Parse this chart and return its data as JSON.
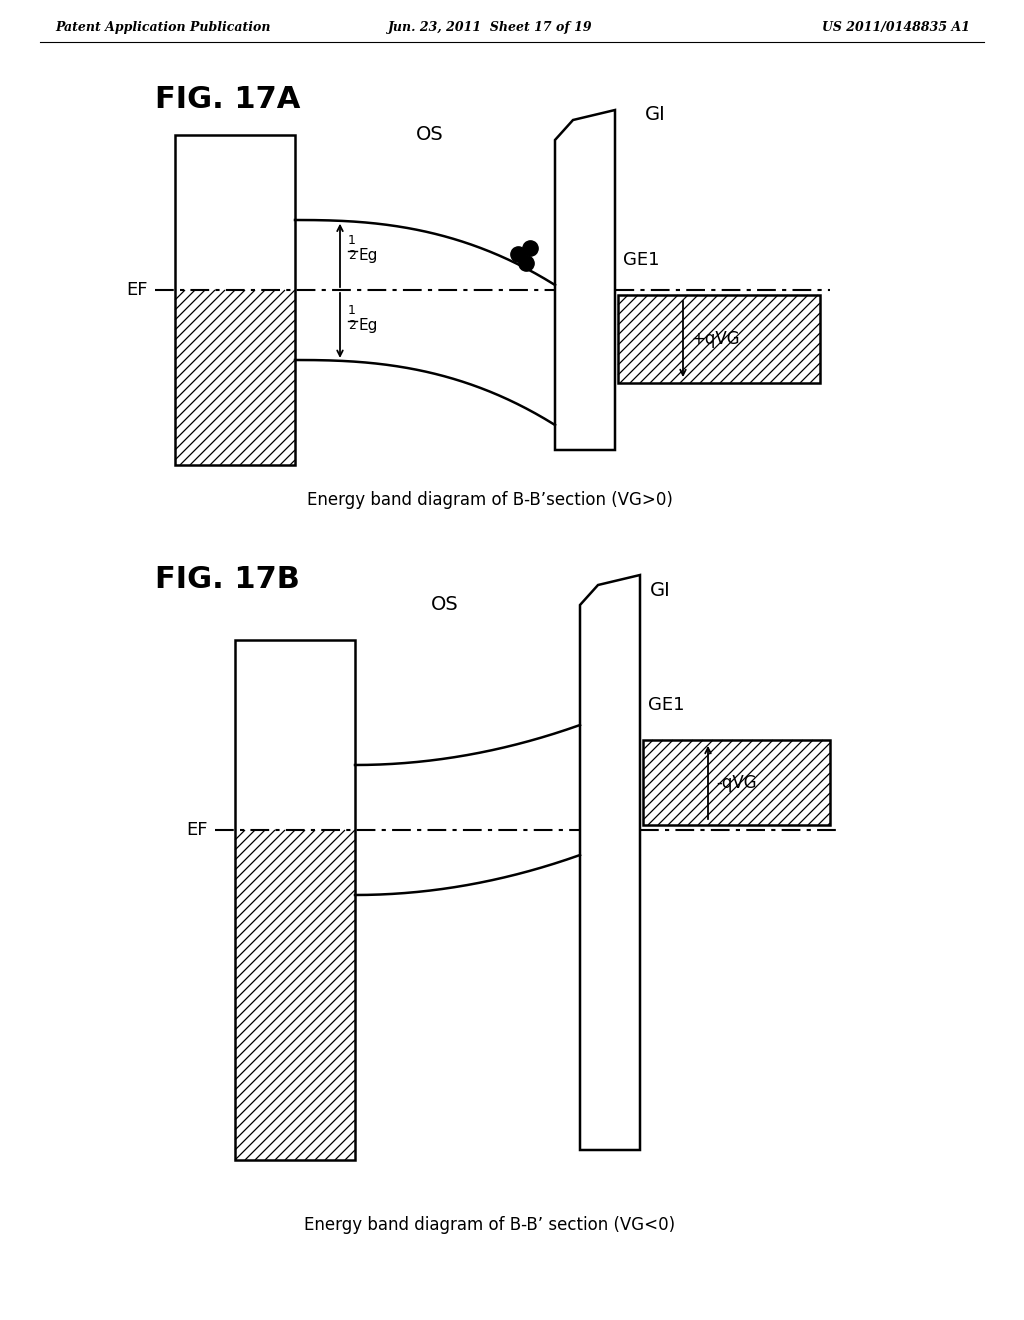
{
  "header_left": "Patent Application Publication",
  "header_mid": "Jun. 23, 2011  Sheet 17 of 19",
  "header_right": "US 2011/0148835 A1",
  "fig17a_label": "FIG. 17A",
  "fig17b_label": "FIG. 17B",
  "caption_a": "Energy band diagram of B-B’section (VG>0)",
  "caption_b": "Energy band diagram of B-B’ section (VG<0)",
  "label_OS_a": "OS",
  "label_GI_a": "GI",
  "label_GE1_a": "GE1",
  "label_EF_a": "EF",
  "label_plusqVG": "+qVG",
  "label_OS_b": "OS",
  "label_GI_b": "GI",
  "label_GE1_b": "GE1",
  "label_EF_b": "EF",
  "label_minusqVG": "-qVG",
  "bg_color": "#ffffff",
  "line_color": "#000000"
}
